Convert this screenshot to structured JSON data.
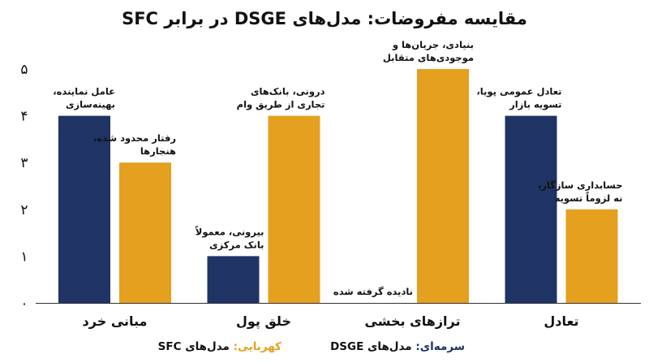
{
  "chart_data": {
    "type": "bar",
    "title": "مقایسه مفروضات: مدل‌های DSGE در برابر SFC",
    "categories": [
      "مبانی خرد",
      "خلق پول",
      "ترازهای بخشی",
      "تعادل"
    ],
    "ylim": [
      0,
      5
    ],
    "yticks": [
      "۰",
      "۱",
      "۲",
      "۳",
      "۴",
      "۵"
    ],
    "grid": false,
    "series": [
      {
        "key": "dsge",
        "color": "#1f3464",
        "values": [
          4,
          1,
          0,
          4
        ],
        "annotations": [
          [
            "عامل نماینده،",
            "بهینه‌سازی"
          ],
          [
            "بیرونی، معمولاً",
            "بانک مرکزی"
          ],
          [
            "نادیده گرفته شده"
          ],
          [
            "تعادل عمومی پویا،",
            "تسویه بازار"
          ]
        ]
      },
      {
        "key": "sfc",
        "color": "#e5a020",
        "values": [
          3,
          4,
          5,
          2
        ],
        "annotations": [
          [
            "رفتار محدود شده،",
            "هنجارها"
          ],
          [
            "درونی، بانک‌های",
            "تجاری از طریق وام"
          ],
          [
            "بنیادی، جریان‌ها و",
            "موجودی‌های متقابل"
          ],
          [
            "حسابداری سازگار،",
            "نه لزوماً تسویه"
          ]
        ]
      }
    ],
    "legend": {
      "position": "bottom",
      "items": [
        {
          "key_text": "سرمه‌ای:",
          "key_color": "#1f3464",
          "label": "مدل‌های DSGE"
        },
        {
          "key_text": "کهربایی:",
          "key_color": "#e5a020",
          "label": "مدل‌های SFC"
        }
      ]
    }
  }
}
